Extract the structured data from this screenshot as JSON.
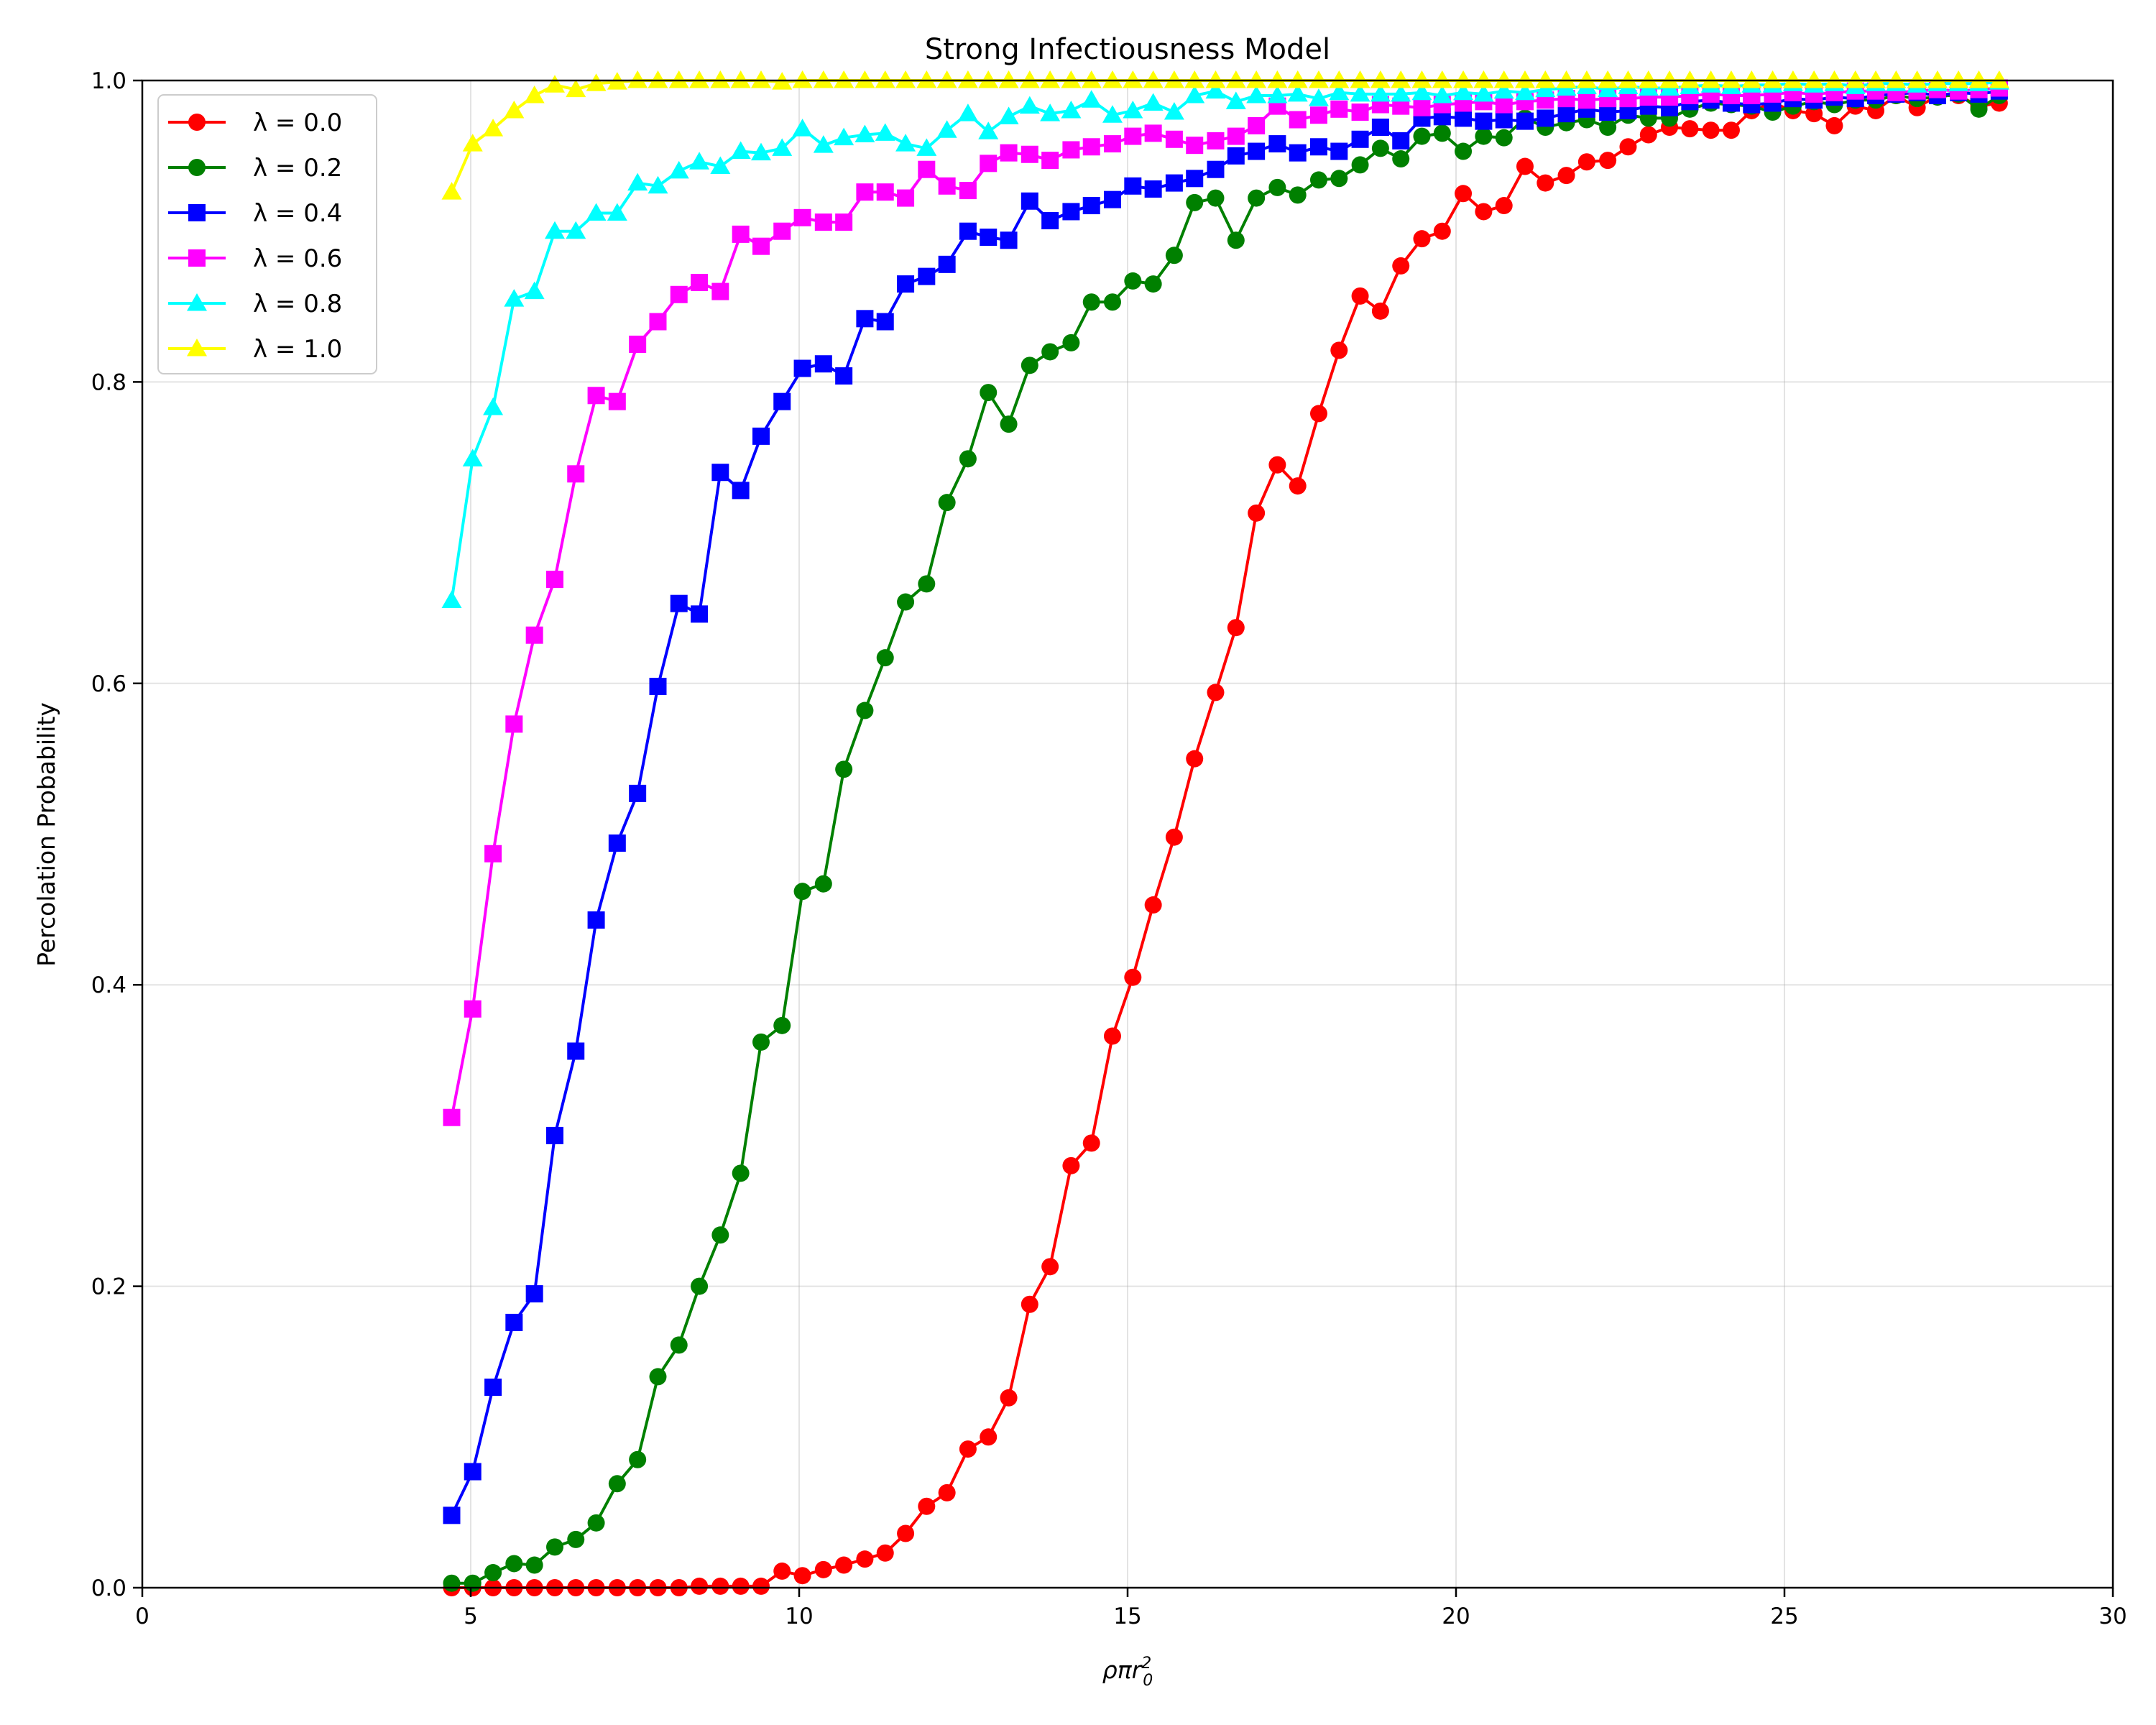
{
  "chart_data": {
    "type": "line",
    "title": "Strong Infectiousness Model",
    "xlabel": "ρπr",
    "xlabel_sup": "2",
    "xlabel_sub": "0",
    "ylabel": "Percolation Probability",
    "xlim": [
      0,
      30
    ],
    "ylim": [
      0,
      1.0
    ],
    "xticks": [
      0,
      5,
      10,
      15,
      20,
      25,
      30
    ],
    "xtick_labels": [
      "0",
      "5",
      "10",
      "15",
      "20",
      "25",
      "30"
    ],
    "yticks": [
      0,
      0.2,
      0.4,
      0.6,
      0.8,
      1.0
    ],
    "ytick_labels": [
      "0.0",
      "0.2",
      "0.4",
      "0.6",
      "0.8",
      "1.0"
    ],
    "grid": true,
    "legend_position": "top-left",
    "x": [
      4.71,
      5.03,
      5.34,
      5.66,
      5.97,
      6.28,
      6.6,
      6.91,
      7.23,
      7.54,
      7.85,
      8.17,
      8.48,
      8.8,
      9.11,
      9.42,
      9.74,
      10.05,
      10.37,
      10.68,
      11.0,
      11.31,
      11.62,
      11.94,
      12.25,
      12.57,
      12.88,
      13.19,
      13.51,
      13.82,
      14.14,
      14.45,
      14.77,
      15.08,
      15.39,
      15.71,
      16.02,
      16.34,
      16.65,
      16.96,
      17.28,
      17.59,
      17.91,
      18.22,
      18.54,
      18.85,
      19.16,
      19.48,
      19.79,
      20.11,
      20.42,
      20.73,
      21.05,
      21.36,
      21.68,
      21.99,
      22.31,
      22.62,
      22.93,
      23.25,
      23.56,
      23.88,
      24.19,
      24.5,
      24.82,
      25.13,
      25.45,
      25.76,
      26.08,
      26.39,
      26.7,
      27.02,
      27.33,
      27.65,
      27.96,
      28.27
    ],
    "series": [
      {
        "name": "λ = 0.0",
        "color": "#ff0000",
        "marker": "circle",
        "values": [
          0.0,
          0.0,
          0.0,
          0.0,
          0.0,
          0.0,
          0.0,
          0.0,
          0.0,
          0.0,
          0.0,
          0.0,
          0.001,
          0.001,
          0.001,
          0.001,
          0.011,
          0.008,
          0.012,
          0.015,
          0.019,
          0.023,
          0.036,
          0.054,
          0.063,
          0.092,
          0.1,
          0.126,
          0.188,
          0.213,
          0.28,
          0.295,
          0.366,
          0.405,
          0.453,
          0.498,
          0.55,
          0.594,
          0.637,
          0.713,
          0.745,
          0.731,
          0.779,
          0.821,
          0.857,
          0.847,
          0.877,
          0.895,
          0.9,
          0.925,
          0.913,
          0.917,
          0.943,
          0.932,
          0.937,
          0.946,
          0.947,
          0.956,
          0.964,
          0.969,
          0.968,
          0.967,
          0.967,
          0.98,
          0.985,
          0.98,
          0.978,
          0.97,
          0.983,
          0.98,
          0.99,
          0.982,
          0.99,
          0.99,
          0.983,
          0.985
        ]
      },
      {
        "name": "λ = 0.2",
        "color": "#008000",
        "marker": "circle",
        "values": [
          0.003,
          0.003,
          0.01,
          0.016,
          0.015,
          0.027,
          0.032,
          0.043,
          0.069,
          0.085,
          0.14,
          0.161,
          0.2,
          0.234,
          0.275,
          0.362,
          0.373,
          0.462,
          0.467,
          0.543,
          0.582,
          0.617,
          0.654,
          0.666,
          0.72,
          0.749,
          0.793,
          0.772,
          0.811,
          0.82,
          0.826,
          0.853,
          0.853,
          0.867,
          0.865,
          0.884,
          0.919,
          0.922,
          0.894,
          0.922,
          0.929,
          0.924,
          0.934,
          0.935,
          0.944,
          0.955,
          0.948,
          0.963,
          0.965,
          0.953,
          0.963,
          0.962,
          0.975,
          0.969,
          0.972,
          0.974,
          0.969,
          0.977,
          0.975,
          0.975,
          0.981,
          0.985,
          0.984,
          0.983,
          0.979,
          0.983,
          0.986,
          0.984,
          0.987,
          0.987,
          0.99,
          0.988,
          0.989,
          0.991,
          0.981,
          0.99
        ]
      },
      {
        "name": "λ = 0.4",
        "color": "#0000ff",
        "marker": "square",
        "values": [
          0.048,
          0.077,
          0.133,
          0.176,
          0.195,
          0.3,
          0.356,
          0.443,
          0.494,
          0.527,
          0.598,
          0.653,
          0.646,
          0.74,
          0.728,
          0.764,
          0.787,
          0.809,
          0.812,
          0.804,
          0.842,
          0.84,
          0.865,
          0.87,
          0.878,
          0.9,
          0.896,
          0.894,
          0.92,
          0.907,
          0.913,
          0.917,
          0.921,
          0.93,
          0.928,
          0.932,
          0.935,
          0.941,
          0.95,
          0.953,
          0.958,
          0.952,
          0.956,
          0.953,
          0.961,
          0.969,
          0.96,
          0.975,
          0.976,
          0.975,
          0.973,
          0.974,
          0.973,
          0.975,
          0.978,
          0.981,
          0.979,
          0.98,
          0.983,
          0.982,
          0.986,
          0.987,
          0.985,
          0.984,
          0.985,
          0.988,
          0.987,
          0.989,
          0.988,
          0.99,
          0.991,
          0.992,
          0.99,
          0.992,
          0.991,
          0.993
        ]
      },
      {
        "name": "λ = 0.6",
        "color": "#ff00ff",
        "marker": "square",
        "values": [
          0.312,
          0.384,
          0.487,
          0.573,
          0.632,
          0.669,
          0.739,
          0.791,
          0.787,
          0.825,
          0.84,
          0.858,
          0.866,
          0.86,
          0.898,
          0.89,
          0.9,
          0.909,
          0.906,
          0.906,
          0.926,
          0.926,
          0.922,
          0.941,
          0.93,
          0.927,
          0.945,
          0.952,
          0.951,
          0.947,
          0.954,
          0.956,
          0.958,
          0.963,
          0.965,
          0.961,
          0.957,
          0.96,
          0.963,
          0.97,
          0.983,
          0.974,
          0.977,
          0.981,
          0.979,
          0.984,
          0.983,
          0.982,
          0.984,
          0.985,
          0.986,
          0.984,
          0.986,
          0.987,
          0.988,
          0.987,
          0.988,
          0.988,
          0.989,
          0.989,
          0.99,
          0.991,
          0.99,
          0.99,
          0.991,
          0.992,
          0.991,
          0.992,
          0.993,
          0.993,
          0.992,
          0.993,
          0.994,
          0.993,
          0.994,
          0.995
        ]
      },
      {
        "name": "λ = 0.8",
        "color": "#00ffff",
        "marker": "triangle",
        "values": [
          0.655,
          0.749,
          0.783,
          0.855,
          0.86,
          0.9,
          0.9,
          0.912,
          0.912,
          0.932,
          0.93,
          0.94,
          0.946,
          0.943,
          0.953,
          0.952,
          0.955,
          0.968,
          0.957,
          0.962,
          0.964,
          0.965,
          0.958,
          0.955,
          0.967,
          0.978,
          0.966,
          0.976,
          0.983,
          0.978,
          0.98,
          0.987,
          0.977,
          0.98,
          0.985,
          0.979,
          0.99,
          0.993,
          0.986,
          0.99,
          0.99,
          0.991,
          0.988,
          0.992,
          0.991,
          0.991,
          0.991,
          0.992,
          0.99,
          0.992,
          0.991,
          0.993,
          0.992,
          0.994,
          0.995,
          0.996,
          0.994,
          0.996,
          0.995,
          0.995,
          0.996,
          0.997,
          0.996,
          0.997,
          0.997,
          0.998,
          0.997,
          0.998,
          0.996,
          0.998,
          0.998,
          0.997,
          0.998,
          0.998,
          0.998,
          0.999
        ]
      },
      {
        "name": "λ = 1.0",
        "color": "#ffff00",
        "marker": "triangle",
        "values": [
          0.926,
          0.958,
          0.968,
          0.98,
          0.99,
          0.997,
          0.994,
          0.998,
          0.999,
          1.0,
          1.0,
          1.0,
          1.0,
          1.0,
          1.0,
          1.0,
          0.999,
          1.0,
          1.0,
          1.0,
          1.0,
          1.0,
          1.0,
          1.0,
          1.0,
          1.0,
          1.0,
          1.0,
          1.0,
          1.0,
          1.0,
          1.0,
          1.0,
          1.0,
          1.0,
          1.0,
          1.0,
          1.0,
          1.0,
          1.0,
          1.0,
          1.0,
          1.0,
          1.0,
          1.0,
          1.0,
          1.0,
          1.0,
          1.0,
          1.0,
          1.0,
          1.0,
          1.0,
          1.0,
          1.0,
          1.0,
          1.0,
          1.0,
          1.0,
          1.0,
          1.0,
          1.0,
          1.0,
          1.0,
          1.0,
          1.0,
          1.0,
          1.0,
          1.0,
          1.0,
          1.0,
          1.0,
          1.0,
          1.0,
          1.0,
          1.0
        ]
      }
    ]
  }
}
